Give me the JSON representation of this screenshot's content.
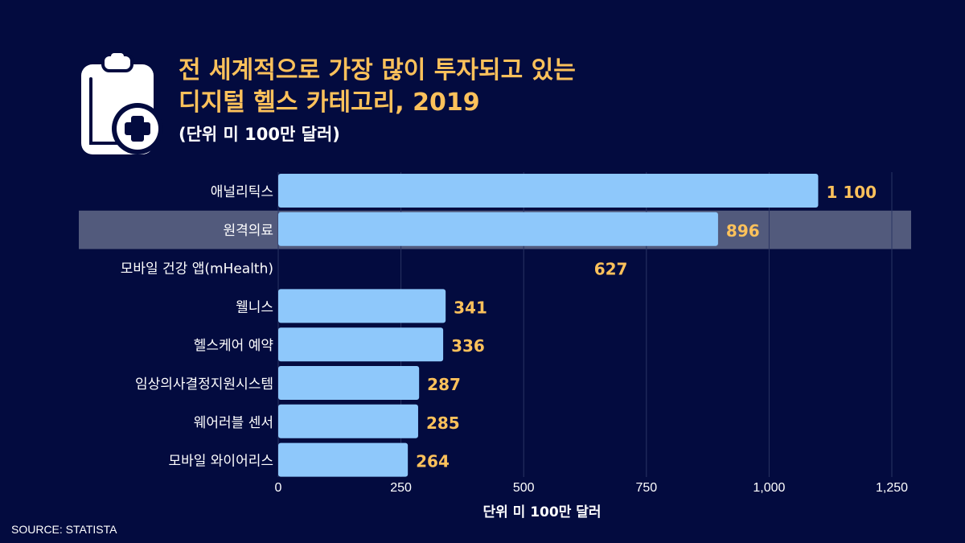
{
  "title_lines": [
    "전 세계적으로 가장 많이 투자되고 있는",
    "디지털 헬스 카테고리, 2019"
  ],
  "subtitle": "(단위 미 100만 달러)",
  "source": "SOURCE: STATISTA",
  "colors": {
    "background": "#030b3f",
    "bar": "#8ec8fb",
    "value_label": "#fcc15b",
    "highlight": "#525a7c",
    "grid": "#2a3563"
  },
  "chart_data": {
    "type": "bar",
    "orientation": "horizontal",
    "categories": [
      "애널리틱스",
      "원격의료",
      "모바일 건강 앱(mHealth)",
      "웰니스",
      "헬스케어 예약",
      "임상의사결정지원시스템",
      "웨어러블 센서",
      "모바일 와이어리스"
    ],
    "values": [
      1100,
      896,
      627,
      341,
      336,
      287,
      285,
      264
    ],
    "value_labels": [
      "1 100",
      "896",
      "627",
      "341",
      "336",
      "287",
      "285",
      "264"
    ],
    "xlabel": "단위 미 100만 달러",
    "xlim": [
      0,
      1300
    ],
    "ticks": [
      0,
      250,
      500,
      750,
      1000,
      1250
    ],
    "tick_labels": [
      "0",
      "250",
      "500",
      "750",
      "1,000",
      "1,250"
    ],
    "highlighted_category": "원격의료",
    "hidden_bar_category": "모바일 건강 앱(mHealth)",
    "grid": true
  }
}
